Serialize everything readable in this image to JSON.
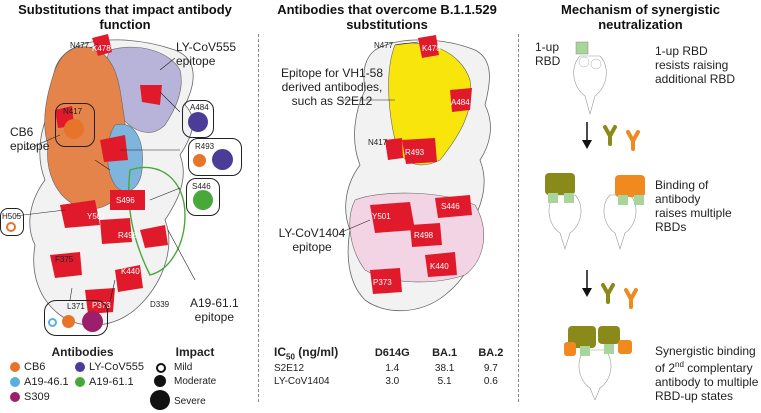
{
  "panel1": {
    "title_line1": "Substitutions that impact antibody",
    "title_line2": "function",
    "labels": {
      "n477": "N477",
      "k478": "K478",
      "n417": "N417",
      "a484": "A484",
      "r493": "R493",
      "s446": "S446",
      "h505": "H505",
      "y501": "Y501",
      "s496": "S496",
      "r498": "R498",
      "f375": "F375",
      "k440": "K440",
      "p373": "P373",
      "d339": "D339",
      "l371": "L371"
    },
    "epitope_lycov555": "LY-CoV555\nepitope",
    "epitope_cb6": "CB6\nepitope",
    "epitope_a1961": "A19-61.1\nepitope",
    "legend": {
      "antibodies_title": "Antibodies",
      "items": [
        "CB6",
        "LY-CoV555",
        "A19-46.1",
        "A19-61.1",
        "S309"
      ],
      "colors": {
        "CB6": "#e8742a",
        "LY-CoV555": "#4b3d97",
        "A19-46.1": "#5ab0dd",
        "A19-61.1": "#49a83a",
        "S309": "#9b1f6b"
      },
      "impact_title": "Impact",
      "impact_items": [
        "Mild",
        "Moderate",
        "Severe"
      ]
    }
  },
  "panel2": {
    "title_line1": "Antibodies that overcome B.1.1.529",
    "title_line2": "substitutions",
    "labels": {
      "n477": "N477",
      "k478": "K478",
      "a484": "A484",
      "n417": "N417",
      "r493": "R493",
      "s446": "S446",
      "y501": "Y501",
      "r498": "R498",
      "k440": "K440",
      "p373": "P373"
    },
    "epitope_s2e12": "Epitope for VH1-58\nderived antibodies,\nsuch as S2E12",
    "epitope_lycov1404": "LY-CoV1404\nepitope",
    "table": {
      "header_ic50": "IC",
      "header_sub": "50",
      "header_unit": " (ng/ml)",
      "columns": [
        "D614G",
        "BA.1",
        "BA.2"
      ],
      "rows": [
        {
          "name": "S2E12",
          "values": [
            "1.4",
            "38.1",
            "9.7"
          ]
        },
        {
          "name": "LY-CoV1404",
          "values": [
            "3.0",
            "5.1",
            "0.6"
          ]
        }
      ]
    }
  },
  "panel3": {
    "title_line1": "Mechanism of synergistic",
    "title_line2": "neutralization",
    "one_up_label": "1-up\nRBD",
    "step1": "1-up RBD\nresists raising\nadditional RBD",
    "step2": "Binding of\nantibody\nraises multiple\nRBDs",
    "step3_a": "Synergistic binding",
    "step3_b_pre": "of 2",
    "step3_b_sup": "nd",
    "step3_b_post": " complentary",
    "step3_c": "antibody to multiple",
    "step3_d": "RBD-up states"
  }
}
